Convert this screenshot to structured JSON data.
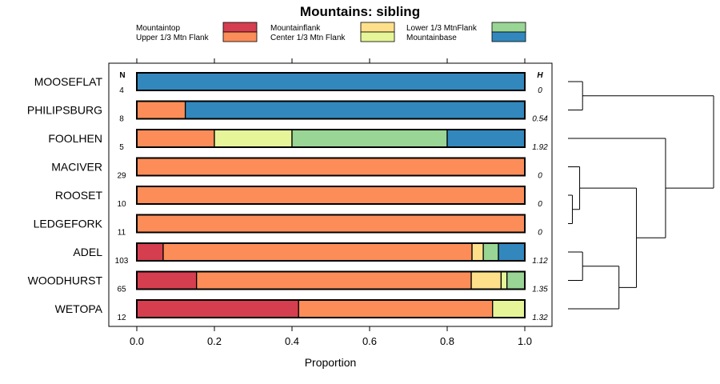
{
  "chart_data": {
    "type": "bar",
    "orientation": "horizontal",
    "stacked": true,
    "title": "Mountains: sibling",
    "xlabel": "Proportion",
    "ylabel": "",
    "xlim": [
      0,
      1
    ],
    "xticks": [
      0,
      0.2,
      0.4,
      0.6,
      0.8,
      1
    ],
    "xtick_labels": [
      "0.0",
      "0.2",
      "0.4",
      "0.6",
      "0.8",
      "1.0"
    ],
    "n_header": "N",
    "h_header": "H",
    "legend_position": "top",
    "categories": [
      "MOOSEFLAT",
      "PHILIPSBURG",
      "FOOLHEN",
      "MACIVER",
      "ROOSET",
      "LEDGEFORK",
      "ADEL",
      "WOODHURST",
      "WETOPA"
    ],
    "n": [
      "4",
      "8",
      "5",
      "29",
      "10",
      "11",
      "103",
      "65",
      "12"
    ],
    "h": [
      "0",
      "0.54",
      "1.92",
      "0",
      "0",
      "0",
      "1.12",
      "1.35",
      "1.32"
    ],
    "series": [
      {
        "name": "Mountaintop",
        "color": "#d53e4f",
        "values": [
          0,
          0,
          0,
          0,
          0,
          0,
          0.068,
          0.154,
          0.417
        ]
      },
      {
        "name": "Upper 1/3 Mtn Flank",
        "color": "#fc8d59",
        "values": [
          0,
          0.125,
          0.2,
          1,
          1,
          1,
          0.796,
          0.708,
          0.5
        ]
      },
      {
        "name": "Mountainflank",
        "color": "#fee08b",
        "values": [
          0,
          0,
          0,
          0,
          0,
          0,
          0.029,
          0.077,
          0
        ]
      },
      {
        "name": "Center 1/3 Mtn Flank",
        "color": "#e6f598",
        "values": [
          0,
          0,
          0.2,
          0,
          0,
          0,
          0,
          0.015,
          0.083
        ]
      },
      {
        "name": "Lower 1/3 MtnFlank",
        "color": "#99d594",
        "values": [
          0,
          0,
          0.4,
          0,
          0,
          0,
          0.039,
          0.046,
          0
        ]
      },
      {
        "name": "Mountainbase",
        "color": "#3288bd",
        "values": [
          1,
          0.875,
          0.2,
          0,
          0,
          0,
          0.068,
          0,
          0
        ]
      }
    ],
    "legend_order": [
      "Mountaintop",
      "Mountainflank",
      "Lower 1/3 MtnFlank",
      "Upper 1/3 Mtn Flank",
      "Center 1/3 Mtn Flank",
      "Mountainbase"
    ],
    "dendrogram": {
      "leaf_order": [
        "MOOSEFLAT",
        "PHILIPSBURG",
        "FOOLHEN",
        "MACIVER",
        "ROOSET",
        "LEDGEFORK",
        "ADEL",
        "WOODHURST",
        "WETOPA"
      ],
      "merges": [
        {
          "a": "MOOSEFLAT",
          "b": "PHILIPSBURG",
          "height": 0.1
        },
        {
          "a": "ROOSET",
          "b": "LEDGEFORK",
          "height": 0.03
        },
        {
          "a": "MACIVER",
          "b": "ROOSET+LEDGEFORK",
          "height": 0.08
        },
        {
          "a": "ADEL",
          "b": "WOODHURST",
          "height": 0.1
        },
        {
          "a": "ADEL+WOODHURST",
          "b": "WETOPA",
          "height": 0.35
        },
        {
          "a": "MACIVER+ROOSET+LEDGEFORK",
          "b": "ADEL+WOODHURST+WETOPA",
          "height": 0.47
        },
        {
          "a": "FOOLHEN",
          "b": "MACIVER+ROOSET+LEDGEFORK+ADEL+WOODHURST+WETOPA",
          "height": 0.67
        },
        {
          "a": "MOOSEFLAT+PHILIPSBURG",
          "b": "FOOLHEN+MACIVER+ROOSET+LEDGEFORK+ADEL+WOODHURST+WETOPA",
          "height": 1.0
        }
      ]
    }
  }
}
